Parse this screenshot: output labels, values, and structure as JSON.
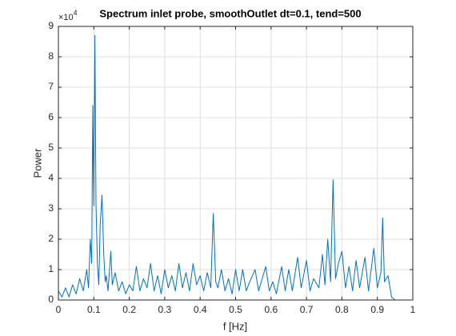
{
  "chart_data": {
    "type": "line",
    "title": "Spectrum inlet probe, smoothOutlet dt=0.1, tend=500",
    "xlabel": "f [Hz]",
    "ylabel": "Power",
    "y_multiplier": {
      "base": "×10",
      "exponent": "4"
    },
    "x": [
      0,
      0.01,
      0.02,
      0.03,
      0.04,
      0.05,
      0.06,
      0.07,
      0.08,
      0.085,
      0.09,
      0.094,
      0.097,
      0.1,
      0.103,
      0.106,
      0.11,
      0.114,
      0.118,
      0.123,
      0.128,
      0.132,
      0.135,
      0.14,
      0.148,
      0.152,
      0.16,
      0.17,
      0.18,
      0.19,
      0.2,
      0.21,
      0.22,
      0.23,
      0.24,
      0.25,
      0.26,
      0.27,
      0.28,
      0.29,
      0.3,
      0.31,
      0.32,
      0.33,
      0.34,
      0.35,
      0.36,
      0.37,
      0.38,
      0.39,
      0.4,
      0.41,
      0.42,
      0.43,
      0.437,
      0.444,
      0.45,
      0.46,
      0.47,
      0.48,
      0.49,
      0.5,
      0.51,
      0.52,
      0.53,
      0.54,
      0.555,
      0.565,
      0.575,
      0.585,
      0.595,
      0.605,
      0.615,
      0.63,
      0.64,
      0.65,
      0.66,
      0.675,
      0.685,
      0.7,
      0.71,
      0.72,
      0.735,
      0.745,
      0.752,
      0.76,
      0.768,
      0.775,
      0.782,
      0.79,
      0.8,
      0.81,
      0.82,
      0.83,
      0.84,
      0.85,
      0.865,
      0.875,
      0.89,
      0.9,
      0.91,
      0.915,
      0.92,
      0.93,
      0.94,
      0.95
    ],
    "series": [
      {
        "name": "Power",
        "color": "#0072bd",
        "values": [
          0.3,
          0.1,
          0.4,
          0.1,
          0.5,
          0.2,
          0.7,
          0.3,
          1.0,
          0.4,
          2.0,
          1.2,
          6.4,
          3.1,
          8.7,
          3.2,
          1.2,
          0.5,
          2.5,
          3.45,
          1.5,
          0.6,
          0.8,
          0.3,
          1.6,
          0.5,
          0.9,
          0.3,
          0.6,
          0.2,
          0.5,
          0.3,
          1.1,
          0.3,
          0.7,
          0.4,
          1.2,
          0.3,
          0.8,
          0.2,
          1.0,
          0.4,
          0.8,
          0.3,
          1.2,
          0.4,
          0.9,
          0.3,
          1.2,
          0.5,
          0.8,
          0.3,
          0.9,
          0.4,
          2.85,
          0.6,
          0.4,
          1.0,
          0.3,
          0.7,
          0.2,
          1.0,
          0.3,
          1.0,
          0.3,
          0.6,
          1.0,
          0.3,
          0.7,
          1.1,
          0.3,
          0.6,
          0.2,
          1.1,
          0.3,
          1.0,
          0.3,
          1.4,
          0.4,
          1.3,
          0.3,
          0.7,
          0.4,
          1.5,
          0.5,
          2.0,
          0.6,
          3.95,
          0.7,
          1.2,
          1.6,
          0.4,
          1.1,
          0.3,
          1.3,
          0.4,
          1.4,
          0.3,
          1.7,
          0.4,
          0.9,
          2.7,
          0.6,
          0.8,
          0.1,
          0
        ]
      }
    ],
    "xlim": [
      0,
      1
    ],
    "xticks": [
      0,
      0.1,
      0.2,
      0.3,
      0.4,
      0.5,
      0.6,
      0.7,
      0.8,
      0.9,
      1
    ],
    "ylim": [
      0,
      9
    ],
    "yticks": [
      0,
      1,
      2,
      3,
      4,
      5,
      6,
      7,
      8,
      9
    ],
    "grid": true
  }
}
